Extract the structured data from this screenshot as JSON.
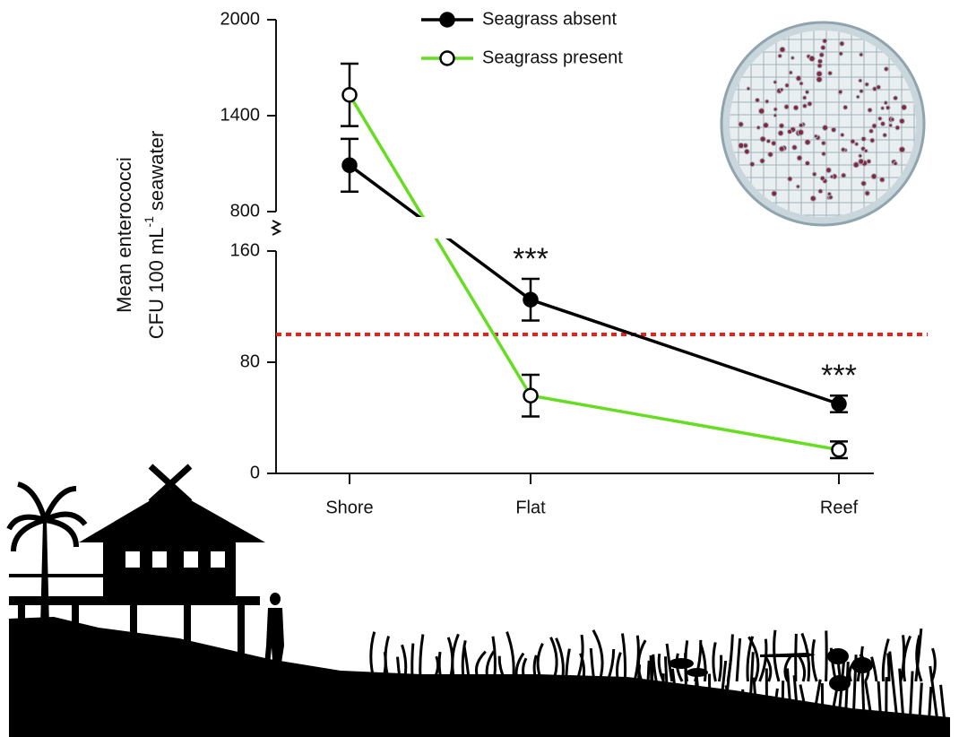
{
  "chart_data": {
    "type": "line",
    "y_label": [
      "Mean enterococci",
      "CFU 100 mL",
      "-1",
      "seawater"
    ],
    "categories": [
      "Shore",
      "Flat",
      "Reef"
    ],
    "series": [
      {
        "name": "Seagrass absent",
        "color": "#000000",
        "marker_fill": "#000000",
        "values": [
          1090,
          125,
          50
        ],
        "errors": [
          165,
          15,
          6
        ]
      },
      {
        "name": "Seagrass present",
        "color": "#66dd22",
        "marker_fill": "#ffffff",
        "values": [
          1530,
          56,
          17
        ],
        "errors": [
          195,
          15,
          6
        ]
      }
    ],
    "ylim_lower": [
      0,
      160
    ],
    "ylim_upper": [
      800,
      2000
    ],
    "yticks": [
      0,
      80,
      160,
      800,
      1400,
      2000
    ],
    "reference_line": {
      "value": 100,
      "color": "#e8211a"
    },
    "annotations": [
      "***",
      "***"
    ]
  }
}
